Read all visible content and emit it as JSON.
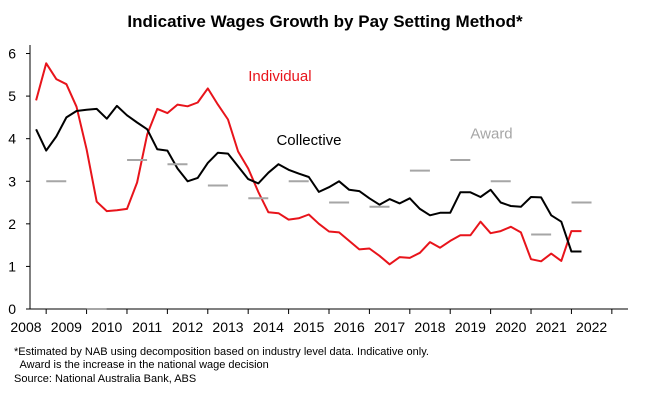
{
  "chart_data": {
    "type": "line",
    "title": "Indicative Wages Growth by Pay Setting Method*",
    "xlabel": "",
    "ylabel": "",
    "ylim": [
      0,
      6.2
    ],
    "xlim": [
      2007.6,
      2022.4
    ],
    "y_ticks": [
      "0",
      "1",
      "2",
      "3",
      "4",
      "5",
      "6"
    ],
    "x_ticks": [
      "2008",
      "2009",
      "2010",
      "2011",
      "2012",
      "2013",
      "2014",
      "2015",
      "2016",
      "2017",
      "2018",
      "2019",
      "2020",
      "2021",
      "2022"
    ],
    "grid": false,
    "series": [
      {
        "name": "Individual",
        "color": "#e8141b",
        "label_at": [
          2013.0,
          5.35
        ],
        "x": [
          2007.75,
          2008.0,
          2008.25,
          2008.5,
          2008.75,
          2009.0,
          2009.25,
          2009.5,
          2009.75,
          2010.0,
          2010.25,
          2010.5,
          2010.75,
          2011.0,
          2011.25,
          2011.5,
          2011.75,
          2012.0,
          2012.25,
          2012.5,
          2012.75,
          2013.0,
          2013.25,
          2013.5,
          2013.75,
          2014.0,
          2014.25,
          2014.5,
          2014.75,
          2015.0,
          2015.25,
          2015.5,
          2015.75,
          2016.0,
          2016.25,
          2016.5,
          2016.75,
          2017.0,
          2017.25,
          2017.5,
          2017.75,
          2018.0,
          2018.25,
          2018.5,
          2018.75,
          2019.0,
          2019.25,
          2019.5,
          2019.75,
          2020.0,
          2020.25,
          2020.5,
          2020.75,
          2021.0,
          2021.25
        ],
        "y": [
          4.9,
          5.77,
          5.4,
          5.28,
          4.75,
          3.75,
          2.52,
          2.3,
          2.32,
          2.35,
          2.97,
          4.1,
          4.7,
          4.6,
          4.8,
          4.76,
          4.85,
          5.18,
          4.8,
          4.45,
          3.7,
          3.3,
          2.75,
          2.27,
          2.25,
          2.1,
          2.13,
          2.22,
          2.0,
          1.82,
          1.8,
          1.6,
          1.4,
          1.42,
          1.25,
          1.05,
          1.22,
          1.2,
          1.32,
          1.57,
          1.44,
          1.6,
          1.73,
          1.73,
          2.05,
          1.78,
          1.83,
          1.93,
          1.8,
          1.17,
          1.12,
          1.3,
          1.13,
          1.83,
          1.83
        ]
      },
      {
        "name": "Collective",
        "color": "#000000",
        "label_at": [
          2013.7,
          3.85
        ],
        "x": [
          2007.75,
          2008.0,
          2008.25,
          2008.5,
          2008.75,
          2009.0,
          2009.25,
          2009.5,
          2009.75,
          2010.0,
          2010.25,
          2010.5,
          2010.75,
          2011.0,
          2011.25,
          2011.5,
          2011.75,
          2012.0,
          2012.25,
          2012.5,
          2012.75,
          2013.0,
          2013.25,
          2013.5,
          2013.75,
          2014.0,
          2014.25,
          2014.5,
          2014.75,
          2015.0,
          2015.25,
          2015.5,
          2015.75,
          2016.0,
          2016.25,
          2016.5,
          2016.75,
          2017.0,
          2017.25,
          2017.5,
          2017.75,
          2018.0,
          2018.25,
          2018.5,
          2018.75,
          2019.0,
          2019.25,
          2019.5,
          2019.75,
          2020.0,
          2020.25,
          2020.5,
          2020.75,
          2021.0,
          2021.25
        ],
        "y": [
          4.22,
          3.72,
          4.05,
          4.5,
          4.65,
          4.68,
          4.7,
          4.47,
          4.77,
          4.55,
          4.38,
          4.22,
          3.75,
          3.72,
          3.3,
          3.0,
          3.08,
          3.43,
          3.67,
          3.65,
          3.35,
          3.05,
          2.95,
          3.2,
          3.4,
          3.27,
          3.18,
          3.1,
          2.75,
          2.86,
          3.0,
          2.8,
          2.77,
          2.6,
          2.45,
          2.58,
          2.48,
          2.6,
          2.35,
          2.2,
          2.26,
          2.26,
          2.74,
          2.74,
          2.63,
          2.8,
          2.5,
          2.42,
          2.4,
          2.63,
          2.62,
          2.2,
          2.05,
          1.35,
          1.35
        ]
      },
      {
        "name": "Award",
        "color": "#a6a6a6",
        "label_at": [
          2018.5,
          4.0
        ],
        "type": "step",
        "x": [
          2008.25,
          2009.25,
          2010.25,
          2011.25,
          2012.25,
          2013.25,
          2014.25,
          2015.25,
          2016.25,
          2017.25,
          2018.25,
          2019.25,
          2020.25,
          2021.25
        ],
        "y": [
          3.0,
          0.0,
          3.5,
          3.4,
          2.9,
          2.6,
          3.0,
          2.5,
          2.4,
          3.25,
          3.5,
          3.0,
          1.75,
          2.5
        ]
      }
    ]
  },
  "notes": {
    "line1": "*Estimated by NAB using decomposition based on industry level data. Indicative only.",
    "line2": "  Award is the increase in the national wage decision",
    "line3": "Source: National Australia Bank, ABS"
  }
}
